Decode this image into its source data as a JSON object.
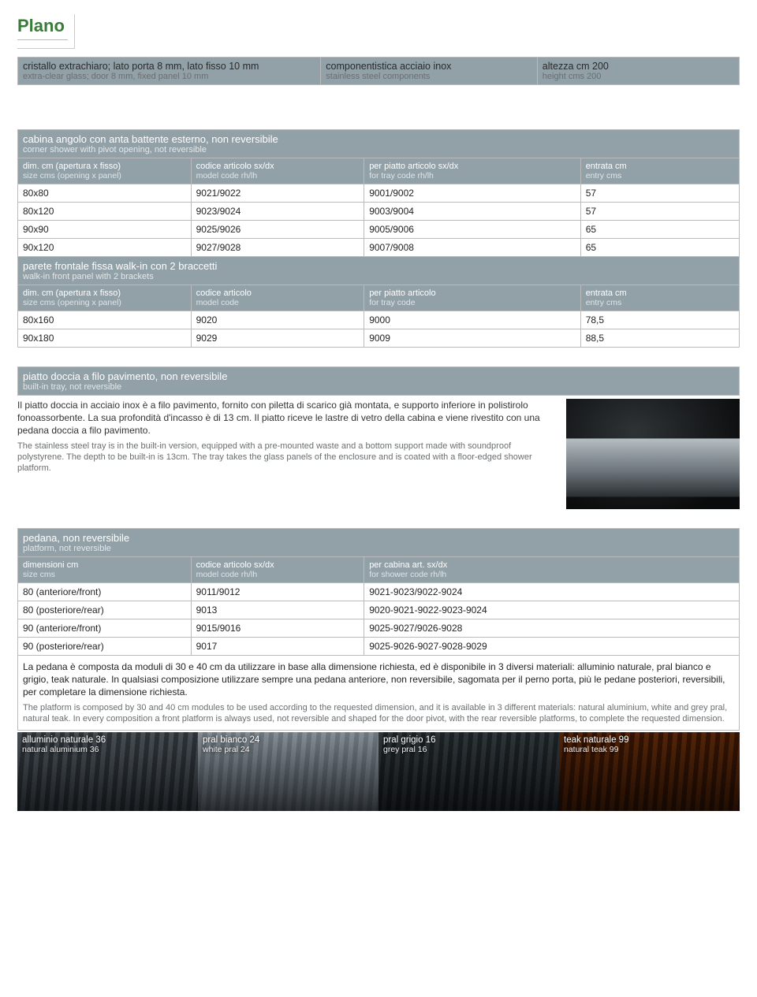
{
  "title": "Plano",
  "top_header": {
    "c1": {
      "it": "cristallo extrachiaro; lato porta 8 mm, lato fisso 10 mm",
      "en": "extra-clear glass; door 8 mm, fixed panel 10 mm"
    },
    "c2": {
      "it": "componentistica acciaio inox",
      "en": "stainless steel components"
    },
    "c3": {
      "it": "altezza cm 200",
      "en": "height cms 200"
    }
  },
  "cabina": {
    "section_it": "cabina angolo con anta battente esterno, non reversibile",
    "section_en": "corner shower with pivot opening, not reversible",
    "cols": {
      "c1": {
        "it": "dim. cm (apertura x fisso)",
        "en": "size cms (opening x panel)"
      },
      "c2": {
        "it": "codice articolo sx/dx",
        "en": "model code rh/lh"
      },
      "c3": {
        "it": "per piatto articolo sx/dx",
        "en": "for tray code rh/lh"
      },
      "c4": {
        "it": "entrata cm",
        "en": "entry cms"
      }
    },
    "rows": [
      {
        "a": "80x80",
        "b": "9021/9022",
        "c": "9001/9002",
        "d": "57"
      },
      {
        "a": "80x120",
        "b": "9023/9024",
        "c": "9003/9004",
        "d": "57"
      },
      {
        "a": "90x90",
        "b": "9025/9026",
        "c": "9005/9006",
        "d": "65"
      },
      {
        "a": "90x120",
        "b": "9027/9028",
        "c": "9007/9008",
        "d": "65"
      }
    ]
  },
  "parete": {
    "section_it": "parete frontale fissa walk-in con 2 braccetti",
    "section_en": "walk-in front panel with 2 brackets",
    "cols": {
      "c1": {
        "it": "dim. cm (apertura x fisso)",
        "en": "size cms (opening x panel)"
      },
      "c2": {
        "it": "codice articolo",
        "en": "model code"
      },
      "c3": {
        "it": "per piatto articolo",
        "en": "for tray code"
      },
      "c4": {
        "it": "entrata cm",
        "en": "entry cms"
      }
    },
    "rows": [
      {
        "a": "80x160",
        "b": "9020",
        "c": "9000",
        "d": "78,5"
      },
      {
        "a": "90x180",
        "b": "9029",
        "c": "9009",
        "d": "88,5"
      }
    ]
  },
  "piatto": {
    "section_it": "piatto doccia a filo pavimento, non reversibile",
    "section_en": "built-in tray, not reversible",
    "body_it": "Il piatto doccia in acciaio inox è a filo pavimento, fornito con piletta di scarico già montata, e supporto inferiore in polistirolo fonoassorbente. La sua profondità d'incasso è di 13 cm. Il piatto riceve le lastre di vetro della cabina e viene rivestito con una pedana doccia a filo pavimento.",
    "body_en": "The stainless steel tray is in the built-in version, equipped with a pre-mounted waste and a bottom support made with soundproof polystyrene. The depth to be built-in is 13cm. The tray takes the glass panels of the enclosure and is coated with a floor-edged shower platform."
  },
  "pedana": {
    "section_it": "pedana, non reversibile",
    "section_en": "platform, not reversible",
    "cols": {
      "c1": {
        "it": "dimensioni cm",
        "en": "size cms"
      },
      "c2": {
        "it": "codice articolo sx/dx",
        "en": "model code rh/lh"
      },
      "c3": {
        "it": "per cabina art. sx/dx",
        "en": "for shower code rh/lh"
      }
    },
    "rows": [
      {
        "a": "80 (anteriore/front)",
        "b": "9011/9012",
        "c": "9021-9023/9022-9024"
      },
      {
        "a": "80 (posteriore/rear)",
        "b": "9013",
        "c": "9020-9021-9022-9023-9024"
      },
      {
        "a": "90 (anteriore/front)",
        "b": "9015/9016",
        "c": "9025-9027/9026-9028"
      },
      {
        "a": "90 (posteriore/rear)",
        "b": "9017",
        "c": "9025-9026-9027-9028-9029"
      }
    ],
    "desc_it": "La pedana è composta da moduli di 30 e 40 cm da utilizzare in base alla dimensione richiesta, ed è disponibile in 3 diversi materiali: alluminio naturale, pral bianco e grigio, teak naturale. In qualsiasi composizione utilizzare sempre una pedana anteriore, non reversibile, sagomata per il perno porta, più le pedane posteriori, reversibili, per completare la dimensione richiesta.",
    "desc_en": "The platform is composed by 30 and 40 cm modules to be used according to the requested dimension, and it is available in 3 different materials: natural aluminium, white and grey pral, natural teak. In every composition a front platform is always used, not reversible and shaped for the door pivot, with the rear reversible platforms, to complete the requested dimension."
  },
  "materials": [
    {
      "it": "alluminio naturale 36",
      "en": "natural aluminium 36",
      "class": "alum"
    },
    {
      "it": "pral bianco 24",
      "en": "white pral 24",
      "class": "white"
    },
    {
      "it": "pral grigio 16",
      "en": "grey pral 16",
      "class": "grey"
    },
    {
      "it": "teak naturale 99",
      "en": "natural teak 99",
      "class": "teak"
    }
  ]
}
